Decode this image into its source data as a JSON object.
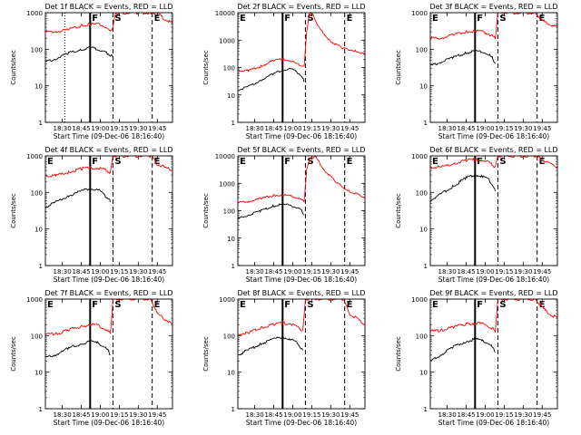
{
  "chart_data": [
    {
      "type": "line",
      "title": "Det 1f BLACK = Events, RED = LLD",
      "ylabel": "Counts/sec",
      "xlabel": "Start Time (09-Dec-06 18:16:40)",
      "x_ticks": [
        "18:30",
        "18:45",
        "19:00",
        "19:15",
        "19:30",
        "19:45"
      ],
      "y_ticks": [
        "1",
        "10",
        "100",
        "1000"
      ],
      "yscale": "log",
      "ylim": [
        1,
        1000
      ],
      "xlim": [
        "18:16:40",
        "19:57"
      ],
      "markers": [
        {
          "label": "",
          "time": "18:32",
          "style": "dotted"
        },
        {
          "label": "F",
          "time": "18:52",
          "style": "solid"
        },
        {
          "label": "S",
          "time": "19:10",
          "style": "dashed"
        },
        {
          "label": "E",
          "time": "19:41",
          "style": "dashed"
        }
      ],
      "series": [
        {
          "name": "RED",
          "color": "#ff0000",
          "x": [
            "18:17",
            "18:25",
            "18:35",
            "18:45",
            "18:52",
            "18:58",
            "19:03",
            "19:05",
            "19:08",
            "19:10",
            "19:12",
            "19:15",
            "19:20",
            "19:30",
            "19:40",
            "19:45",
            "19:50",
            "19:57"
          ],
          "y": [
            300,
            300,
            340,
            450,
            480,
            480,
            430,
            380,
            330,
            400,
            1000,
            1000,
            1000,
            1000,
            1000,
            1000,
            700,
            500
          ]
        },
        {
          "name": "BLACK",
          "color": "#000000",
          "x": [
            "18:17",
            "18:25",
            "18:35",
            "18:45",
            "18:52",
            "18:58",
            "19:03",
            "19:05",
            "19:08",
            "19:10"
          ],
          "y": [
            45,
            55,
            80,
            100,
            110,
            100,
            90,
            80,
            70,
            60
          ]
        }
      ]
    },
    {
      "type": "line",
      "title": "Det 2f BLACK = Events, RED = LLD",
      "ylabel": "Counts/sec",
      "xlabel": "Start Time (09-Dec-06 18:16:40)",
      "x_ticks": [
        "18:30",
        "18:45",
        "19:00",
        "19:15",
        "19:30",
        "19:45"
      ],
      "y_ticks": [
        "1",
        "10",
        "100",
        "1000",
        "10000"
      ],
      "yscale": "log",
      "ylim": [
        1,
        10000
      ],
      "xlim": [
        "18:16:40",
        "19:57"
      ],
      "markers": [
        {
          "label": "E",
          "time": "18:15",
          "style": "dotted"
        },
        {
          "label": "F",
          "time": "18:52",
          "style": "solid"
        },
        {
          "label": "S",
          "time": "19:10",
          "style": "dashed"
        },
        {
          "label": "E",
          "time": "19:41",
          "style": "dashed"
        }
      ],
      "series": [
        {
          "name": "RED",
          "color": "#ff0000",
          "x": [
            "18:17",
            "18:25",
            "18:35",
            "18:45",
            "18:52",
            "18:58",
            "19:03",
            "19:07",
            "19:09",
            "19:11",
            "19:13",
            "19:16",
            "19:20",
            "19:30",
            "19:40",
            "19:50",
            "19:57"
          ],
          "y": [
            80,
            75,
            110,
            180,
            200,
            180,
            140,
            120,
            110,
            2000,
            9000,
            9000,
            3000,
            900,
            500,
            400,
            300
          ]
        },
        {
          "name": "BLACK",
          "color": "#000000",
          "x": [
            "18:17",
            "18:25",
            "18:35",
            "18:45",
            "18:52",
            "18:58",
            "19:03",
            "19:07",
            "19:09"
          ],
          "y": [
            15,
            20,
            35,
            60,
            80,
            90,
            70,
            50,
            30
          ]
        }
      ]
    },
    {
      "type": "line",
      "title": "Det 3f BLACK = Events, RED = LLD",
      "ylabel": "Counts/sec",
      "xlabel": "Start Time (09-Dec-06 18:16:40)",
      "x_ticks": [
        "18:30",
        "18:45",
        "19:00",
        "19:15",
        "19:30",
        "19:45"
      ],
      "y_ticks": [
        "1",
        "10",
        "100",
        "1000"
      ],
      "yscale": "log",
      "ylim": [
        1,
        1000
      ],
      "xlim": [
        "18:16:40",
        "19:57"
      ],
      "markers": [
        {
          "label": "E",
          "time": "18:15",
          "style": "dotted"
        },
        {
          "label": "F",
          "time": "18:52",
          "style": "solid"
        },
        {
          "label": "S",
          "time": "19:10",
          "style": "dashed"
        },
        {
          "label": "E",
          "time": "19:41",
          "style": "dashed"
        }
      ],
      "series": [
        {
          "name": "RED",
          "color": "#ff0000",
          "x": [
            "18:17",
            "18:25",
            "18:35",
            "18:45",
            "18:52",
            "18:58",
            "19:03",
            "19:06",
            "19:08",
            "19:10",
            "19:15",
            "19:30",
            "19:40",
            "19:45",
            "19:50",
            "19:57"
          ],
          "y": [
            200,
            200,
            250,
            300,
            320,
            300,
            260,
            230,
            200,
            1000,
            1000,
            1000,
            1000,
            600,
            500,
            400
          ]
        },
        {
          "name": "BLACK",
          "color": "#000000",
          "x": [
            "18:17",
            "18:25",
            "18:35",
            "18:45",
            "18:52",
            "18:58",
            "19:03",
            "19:06",
            "19:08"
          ],
          "y": [
            35,
            45,
            60,
            80,
            90,
            85,
            70,
            55,
            40
          ]
        }
      ]
    },
    {
      "type": "line",
      "title": "Det 4f BLACK = Events, RED = LLD",
      "ylabel": "Counts/sec",
      "xlabel": "Start Time (09-Dec-06 18:16:40)",
      "x_ticks": [
        "18:30",
        "18:45",
        "19:00",
        "19:15",
        "19:30",
        "19:45"
      ],
      "y_ticks": [
        "1",
        "10",
        "100",
        "1000"
      ],
      "yscale": "log",
      "ylim": [
        1,
        1000
      ],
      "xlim": [
        "18:16:40",
        "19:57"
      ],
      "markers": [
        {
          "label": "E",
          "time": "18:15",
          "style": "dotted"
        },
        {
          "label": "F",
          "time": "18:52",
          "style": "solid"
        },
        {
          "label": "S",
          "time": "19:10",
          "style": "dashed"
        },
        {
          "label": "E",
          "time": "19:41",
          "style": "dashed"
        }
      ],
      "series": [
        {
          "name": "RED",
          "color": "#ff0000",
          "x": [
            "18:17",
            "18:25",
            "18:35",
            "18:45",
            "18:52",
            "18:58",
            "19:03",
            "19:06",
            "19:08",
            "19:10",
            "19:15",
            "19:30",
            "19:40",
            "19:45",
            "19:50",
            "19:57"
          ],
          "y": [
            280,
            290,
            350,
            450,
            470,
            460,
            420,
            380,
            340,
            1000,
            1000,
            1000,
            1000,
            600,
            500,
            400
          ]
        },
        {
          "name": "BLACK",
          "color": "#000000",
          "x": [
            "18:17",
            "18:25",
            "18:35",
            "18:45",
            "18:52",
            "18:58",
            "19:03",
            "19:06",
            "19:08"
          ],
          "y": [
            40,
            55,
            80,
            110,
            130,
            120,
            90,
            70,
            55
          ]
        }
      ]
    },
    {
      "type": "line",
      "title": "Det 5f BLACK = Events, RED = LLD",
      "ylabel": "Counts/sec",
      "xlabel": "Start Time (09-Dec-06 18:16:40)",
      "x_ticks": [
        "18:30",
        "18:45",
        "19:00",
        "19:15",
        "19:30",
        "19:45"
      ],
      "y_ticks": [
        "1",
        "10",
        "100",
        "1000",
        "10000"
      ],
      "yscale": "log",
      "ylim": [
        1,
        10000
      ],
      "xlim": [
        "18:16:40",
        "19:57"
      ],
      "markers": [
        {
          "label": "E",
          "time": "18:15",
          "style": "dotted"
        },
        {
          "label": "F",
          "time": "18:52",
          "style": "solid"
        },
        {
          "label": "S",
          "time": "19:10",
          "style": "dashed"
        },
        {
          "label": "E",
          "time": "19:41",
          "style": "dashed"
        }
      ],
      "series": [
        {
          "name": "RED",
          "color": "#ff0000",
          "x": [
            "18:17",
            "18:25",
            "18:35",
            "18:45",
            "18:52",
            "18:58",
            "19:03",
            "19:07",
            "19:09",
            "19:11",
            "19:14",
            "19:18",
            "19:25",
            "19:35",
            "19:45",
            "19:57"
          ],
          "y": [
            200,
            220,
            280,
            360,
            380,
            350,
            300,
            250,
            230,
            3000,
            9000,
            9000,
            3000,
            1000,
            500,
            300
          ]
        },
        {
          "name": "BLACK",
          "color": "#000000",
          "x": [
            "18:17",
            "18:25",
            "18:35",
            "18:45",
            "18:52",
            "18:58",
            "19:03",
            "19:07",
            "19:09"
          ],
          "y": [
            50,
            70,
            100,
            150,
            170,
            160,
            130,
            100,
            70
          ]
        }
      ]
    },
    {
      "type": "line",
      "title": "Det 6f BLACK = Events, RED = LLD",
      "ylabel": "Counts/sec",
      "xlabel": "Start Time (09-Dec-06 18:16:40)",
      "x_ticks": [
        "18:30",
        "18:45",
        "19:00",
        "19:15",
        "19:30",
        "19:45"
      ],
      "y_ticks": [
        "1",
        "10",
        "100",
        "1000"
      ],
      "yscale": "log",
      "ylim": [
        1,
        1000
      ],
      "xlim": [
        "18:16:40",
        "19:57"
      ],
      "markers": [
        {
          "label": "E",
          "time": "18:15",
          "style": "dotted"
        },
        {
          "label": "F",
          "time": "18:52",
          "style": "solid"
        },
        {
          "label": "S",
          "time": "19:10",
          "style": "dashed"
        },
        {
          "label": "E",
          "time": "19:41",
          "style": "dashed"
        }
      ],
      "series": [
        {
          "name": "RED",
          "color": "#ff0000",
          "x": [
            "18:17",
            "18:25",
            "18:35",
            "18:45",
            "18:52",
            "18:58",
            "19:03",
            "19:06",
            "19:08",
            "19:10",
            "19:15",
            "19:30",
            "19:40",
            "19:45",
            "19:50",
            "19:57"
          ],
          "y": [
            480,
            500,
            600,
            750,
            780,
            740,
            650,
            560,
            500,
            1000,
            1000,
            1000,
            1000,
            800,
            650,
            500
          ]
        },
        {
          "name": "BLACK",
          "color": "#000000",
          "x": [
            "18:17",
            "18:25",
            "18:35",
            "18:45",
            "18:52",
            "18:58",
            "19:03",
            "19:06",
            "19:08"
          ],
          "y": [
            60,
            90,
            150,
            250,
            300,
            280,
            220,
            160,
            110
          ]
        }
      ]
    },
    {
      "type": "line",
      "title": "Det 7f BLACK = Events, RED = LLD",
      "ylabel": "Counts/sec",
      "xlabel": "Start Time (09-Dec-06 18:16:40)",
      "x_ticks": [
        "18:30",
        "18:45",
        "19:00",
        "19:15",
        "19:30",
        "19:45"
      ],
      "y_ticks": [
        "1",
        "10",
        "100",
        "1000"
      ],
      "yscale": "log",
      "ylim": [
        1,
        1000
      ],
      "xlim": [
        "18:16:40",
        "19:57"
      ],
      "markers": [
        {
          "label": "E",
          "time": "18:15",
          "style": "dotted"
        },
        {
          "label": "F",
          "time": "18:52",
          "style": "solid"
        },
        {
          "label": "S",
          "time": "19:10",
          "style": "dashed"
        },
        {
          "label": "E",
          "time": "19:41",
          "style": "dashed"
        }
      ],
      "series": [
        {
          "name": "RED",
          "color": "#ff0000",
          "x": [
            "18:17",
            "18:25",
            "18:35",
            "18:45",
            "18:52",
            "18:58",
            "19:03",
            "19:06",
            "19:08",
            "19:10",
            "19:15",
            "19:30",
            "19:40",
            "19:45",
            "19:50",
            "19:57"
          ],
          "y": [
            110,
            110,
            140,
            180,
            200,
            190,
            160,
            130,
            115,
            1000,
            1000,
            1000,
            1000,
            400,
            300,
            200
          ]
        },
        {
          "name": "BLACK",
          "color": "#000000",
          "x": [
            "18:17",
            "18:25",
            "18:35",
            "18:45",
            "18:52",
            "18:58",
            "19:03",
            "19:06",
            "19:08"
          ],
          "y": [
            25,
            30,
            45,
            60,
            70,
            65,
            50,
            40,
            30
          ]
        }
      ]
    },
    {
      "type": "line",
      "title": "Det 8f BLACK = Events, RED = LLD",
      "ylabel": "Counts/sec",
      "xlabel": "Start Time (09-Dec-06 18:16:40)",
      "x_ticks": [
        "18:30",
        "18:45",
        "19:00",
        "19:15",
        "19:30",
        "19:45"
      ],
      "y_ticks": [
        "1",
        "10",
        "100",
        "1000"
      ],
      "yscale": "log",
      "ylim": [
        1,
        1000
      ],
      "xlim": [
        "18:16:40",
        "19:57"
      ],
      "markers": [
        {
          "label": "E",
          "time": "18:15",
          "style": "dotted"
        },
        {
          "label": "F",
          "time": "18:52",
          "style": "solid"
        },
        {
          "label": "S",
          "time": "19:10",
          "style": "dashed"
        },
        {
          "label": "E",
          "time": "19:41",
          "style": "dashed"
        }
      ],
      "series": [
        {
          "name": "RED",
          "color": "#ff0000",
          "x": [
            "18:17",
            "18:25",
            "18:35",
            "18:45",
            "18:52",
            "18:58",
            "19:03",
            "19:06",
            "19:08",
            "19:10",
            "19:15",
            "19:30",
            "19:40",
            "19:45",
            "19:50",
            "19:57"
          ],
          "y": [
            110,
            120,
            160,
            200,
            220,
            210,
            180,
            150,
            130,
            1000,
            1000,
            1000,
            1000,
            400,
            300,
            200
          ]
        },
        {
          "name": "BLACK",
          "color": "#000000",
          "x": [
            "18:17",
            "18:25",
            "18:35",
            "18:45",
            "18:52",
            "18:58",
            "19:03",
            "19:06",
            "19:08"
          ],
          "y": [
            30,
            40,
            60,
            80,
            90,
            80,
            65,
            50,
            40
          ]
        }
      ]
    },
    {
      "type": "line",
      "title": "Det 9f BLACK = Events, RED = LLD",
      "ylabel": "Counts/sec",
      "xlabel": "Start Time (09-Dec-06 18:16:40)",
      "x_ticks": [
        "18:30",
        "18:45",
        "19:00",
        "19:15",
        "19:30",
        "19:45"
      ],
      "y_ticks": [
        "1",
        "10",
        "100",
        "1000"
      ],
      "yscale": "log",
      "ylim": [
        1,
        1000
      ],
      "xlim": [
        "18:16:40",
        "19:57"
      ],
      "markers": [
        {
          "label": "E",
          "time": "18:15",
          "style": "dotted"
        },
        {
          "label": "F",
          "time": "18:52",
          "style": "solid"
        },
        {
          "label": "S",
          "time": "19:10",
          "style": "dashed"
        },
        {
          "label": "E",
          "time": "19:41",
          "style": "dashed"
        }
      ],
      "series": [
        {
          "name": "RED",
          "color": "#ff0000",
          "x": [
            "18:17",
            "18:25",
            "18:35",
            "18:45",
            "18:52",
            "18:58",
            "19:03",
            "19:06",
            "19:08",
            "19:10",
            "19:15",
            "19:30",
            "19:40",
            "19:45",
            "19:50",
            "19:57"
          ],
          "y": [
            130,
            140,
            170,
            210,
            220,
            210,
            180,
            150,
            130,
            1000,
            1000,
            1000,
            1000,
            600,
            400,
            300
          ]
        },
        {
          "name": "BLACK",
          "color": "#000000",
          "x": [
            "18:17",
            "18:25",
            "18:35",
            "18:45",
            "18:52",
            "18:58",
            "19:03",
            "19:06",
            "19:08"
          ],
          "y": [
            20,
            30,
            50,
            70,
            80,
            75,
            60,
            45,
            35
          ]
        }
      ]
    }
  ]
}
